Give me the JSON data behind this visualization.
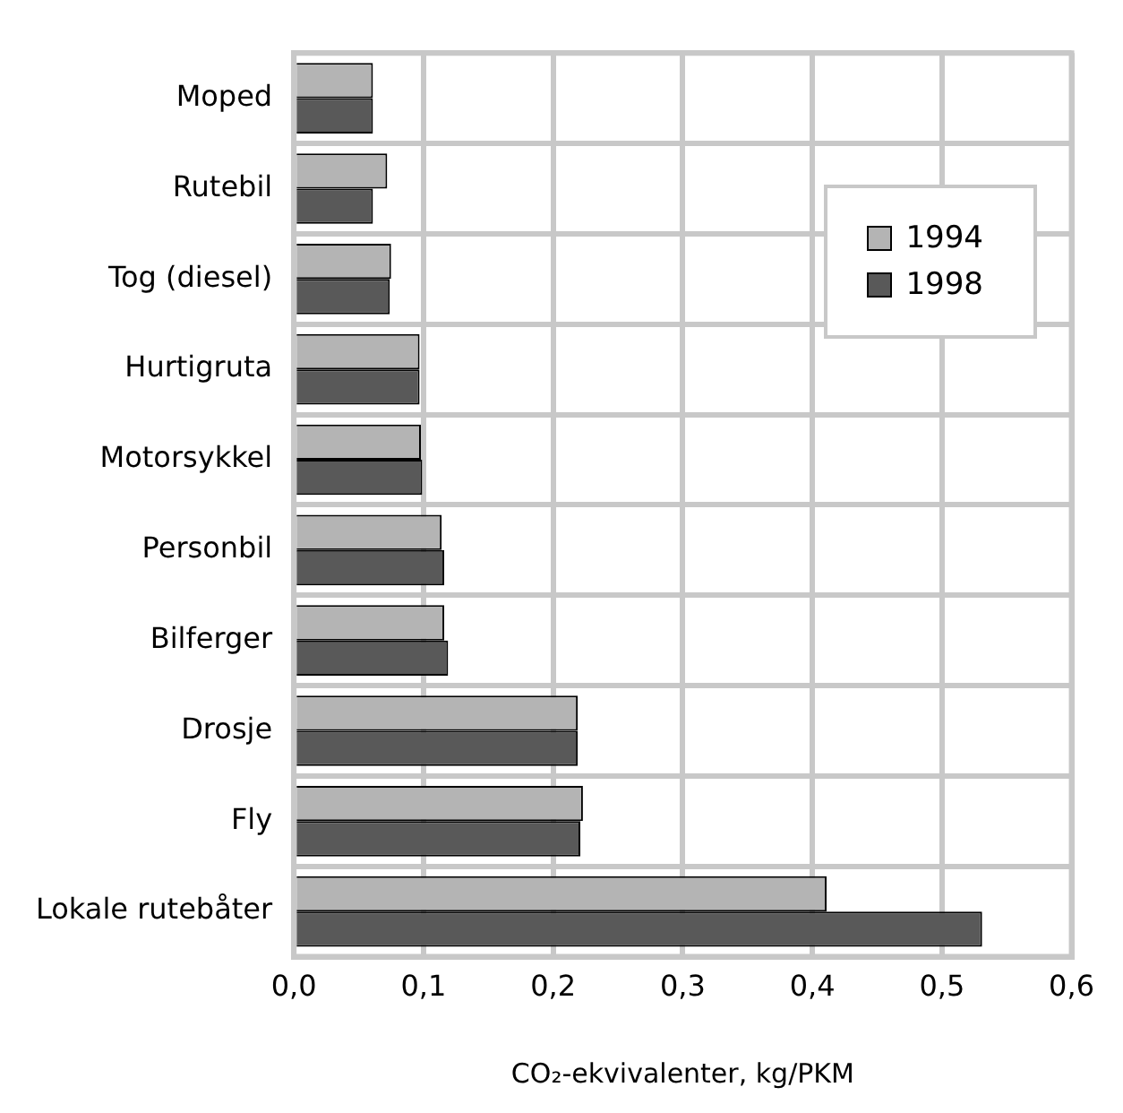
{
  "chart_data": {
    "type": "bar",
    "orientation": "horizontal",
    "xlabel": "CO₂-ekvivalenter, kg/PKM",
    "categories": [
      "Moped",
      "Rutebil",
      "Tog (diesel)",
      "Hurtigruta",
      "Motorsykkel",
      "Personbil",
      "Bilferger",
      "Drosje",
      "Fly",
      "Lokale rutebåter"
    ],
    "series": [
      {
        "name": "1994",
        "color": "#b4b4b4",
        "values": [
          0.061,
          0.072,
          0.075,
          0.097,
          0.098,
          0.114,
          0.116,
          0.219,
          0.223,
          0.411
        ]
      },
      {
        "name": "1998",
        "color": "#595959",
        "values": [
          0.061,
          0.061,
          0.074,
          0.097,
          0.099,
          0.116,
          0.119,
          0.219,
          0.221,
          0.531
        ]
      }
    ],
    "xlim": [
      0,
      0.6
    ],
    "xticks": [
      {
        "value": 0,
        "label": "0,0"
      },
      {
        "value": 0.1,
        "label": "0,1"
      },
      {
        "value": 0.2,
        "label": "0,2"
      },
      {
        "value": 0.3,
        "label": "0,3"
      },
      {
        "value": 0.4,
        "label": "0,4"
      },
      {
        "value": 0.5,
        "label": "0,5"
      },
      {
        "value": 0.6,
        "label": "0,6"
      }
    ],
    "grid": true,
    "legend": "top right"
  }
}
